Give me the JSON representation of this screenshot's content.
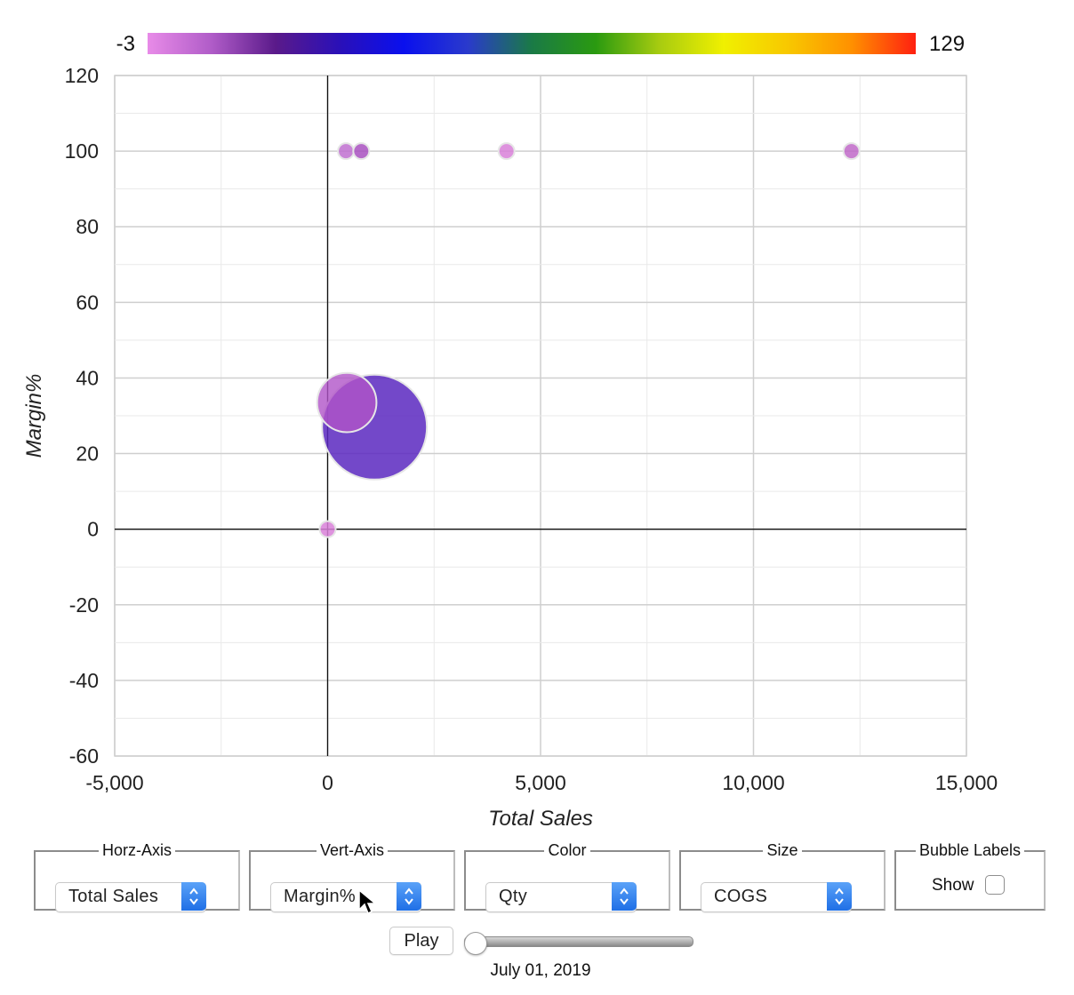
{
  "chart_data": {
    "type": "scatter",
    "subtype": "bubble",
    "xlabel": "Total Sales",
    "ylabel": "Margin%",
    "xlim": [
      -5000,
      15000
    ],
    "ylim": [
      -60,
      120
    ],
    "x_ticks": [
      -5000,
      0,
      5000,
      10000,
      15000
    ],
    "x_tick_labels": [
      "-5,000",
      "0",
      "5,000",
      "10,000",
      "15,000"
    ],
    "y_ticks": [
      -60,
      -40,
      -20,
      0,
      20,
      40,
      60,
      80,
      100,
      120
    ],
    "y_tick_labels": [
      "-60",
      "-40",
      "-20",
      "0",
      "20",
      "40",
      "60",
      "80",
      "100",
      "120"
    ],
    "grid": true,
    "color_scale": {
      "min": -3,
      "max": 129,
      "min_label": "-3",
      "max_label": "129",
      "stops": [
        "#e88be8",
        "#b05cc8",
        "#5a1a8a",
        "#2a10b8",
        "#0a10ee",
        "#2a3acc",
        "#1a7a46",
        "#2a9a10",
        "#a8cc10",
        "#f0f000",
        "#f8c800",
        "#ff9000",
        "#ff2010"
      ]
    },
    "points": [
      {
        "x": 1100,
        "y": 27,
        "size": 100,
        "color": "#5a28c0",
        "opacity": 0.85
      },
      {
        "x": 450,
        "y": 33.5,
        "size": 32,
        "color": "#b054c8",
        "opacity": 0.8
      },
      {
        "x": 0,
        "y": 0,
        "size": 1,
        "color": "#d880d8",
        "opacity": 0.85
      },
      {
        "x": 430,
        "y": 100,
        "size": 1,
        "color": "#c070d0",
        "opacity": 0.85
      },
      {
        "x": 790,
        "y": 100,
        "size": 1,
        "color": "#a850c0",
        "opacity": 0.85
      },
      {
        "x": 4200,
        "y": 100,
        "size": 1,
        "color": "#d880d8",
        "opacity": 0.85
      },
      {
        "x": 12300,
        "y": 100,
        "size": 1,
        "color": "#c068c8",
        "opacity": 0.85
      }
    ]
  },
  "controls": {
    "horz_axis": {
      "legend": "Horz-Axis",
      "value": "Total Sales"
    },
    "vert_axis": {
      "legend": "Vert-Axis",
      "value": "Margin%"
    },
    "color": {
      "legend": "Color",
      "value": "Qty"
    },
    "size": {
      "legend": "Size",
      "value": "COGS"
    },
    "bubble_labels": {
      "legend": "Bubble Labels",
      "show_label": "Show",
      "checked": false
    }
  },
  "playback": {
    "play_label": "Play",
    "date": "July 01, 2019",
    "position": 0
  }
}
